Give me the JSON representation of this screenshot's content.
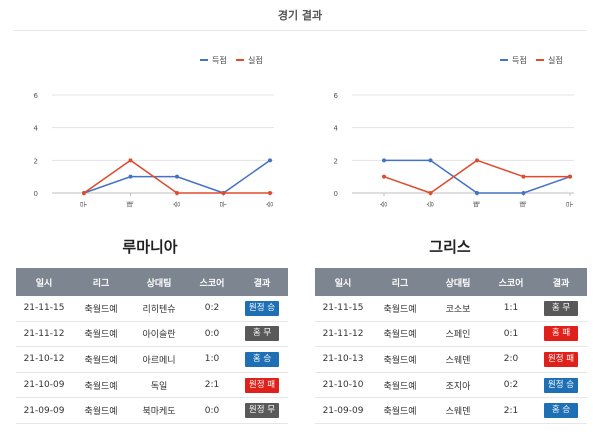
{
  "page": {
    "title": "경기 결과"
  },
  "colors": {
    "scored": "#4472c4",
    "conceded": "#e04b2e",
    "win": "#1f6fb5",
    "draw": "#595959",
    "loss": "#e0201b"
  },
  "chart_data": [
    {
      "type": "line",
      "title": "",
      "categories": [
        "무",
        "패",
        "승",
        "무",
        "승"
      ],
      "series": [
        {
          "name": "득점",
          "color": "#4472c4",
          "values": [
            0,
            1,
            1,
            0,
            2
          ]
        },
        {
          "name": "실점",
          "color": "#e04b2e",
          "values": [
            0,
            2,
            0,
            0,
            0
          ]
        }
      ],
      "yticks": [
        0,
        2,
        4,
        6
      ],
      "ylim": [
        0,
        6
      ],
      "legend": "top-right",
      "grid": true
    },
    {
      "type": "line",
      "title": "",
      "categories": [
        "승",
        "승",
        "패",
        "패",
        "무"
      ],
      "series": [
        {
          "name": "득점",
          "color": "#4472c4",
          "values": [
            2,
            2,
            0,
            0,
            1
          ]
        },
        {
          "name": "실점",
          "color": "#e04b2e",
          "values": [
            1,
            0,
            2,
            1,
            1
          ]
        }
      ],
      "yticks": [
        0,
        2,
        4,
        6
      ],
      "ylim": [
        0,
        6
      ],
      "legend": "top-right",
      "grid": true
    }
  ],
  "teams": [
    {
      "name": "루마니아",
      "headers": [
        "일시",
        "리그",
        "상대팀",
        "스코어",
        "결과"
      ],
      "rows": [
        {
          "date": "21-11-15",
          "league": "축월드예",
          "opponent": "리히텐슈",
          "score": "0:2",
          "result": "원정 승",
          "type": "win"
        },
        {
          "date": "21-11-12",
          "league": "축월드예",
          "opponent": "아이슬란",
          "score": "0:0",
          "result": "홈 무",
          "type": "draw"
        },
        {
          "date": "21-10-12",
          "league": "축월드예",
          "opponent": "아르메니",
          "score": "1:0",
          "result": "홈 승",
          "type": "win"
        },
        {
          "date": "21-10-09",
          "league": "축월드예",
          "opponent": "독일",
          "score": "2:1",
          "result": "원정 패",
          "type": "loss"
        },
        {
          "date": "21-09-09",
          "league": "축월드예",
          "opponent": "북마케도",
          "score": "0:0",
          "result": "원정 무",
          "type": "draw"
        }
      ]
    },
    {
      "name": "그리스",
      "headers": [
        "일시",
        "리그",
        "상대팀",
        "스코어",
        "결과"
      ],
      "rows": [
        {
          "date": "21-11-15",
          "league": "축월드예",
          "opponent": "코소보",
          "score": "1:1",
          "result": "홈 무",
          "type": "draw"
        },
        {
          "date": "21-11-12",
          "league": "축월드예",
          "opponent": "스페인",
          "score": "0:1",
          "result": "홈 패",
          "type": "loss"
        },
        {
          "date": "21-10-13",
          "league": "축월드예",
          "opponent": "스웨덴",
          "score": "2:0",
          "result": "원정 패",
          "type": "loss"
        },
        {
          "date": "21-10-10",
          "league": "축월드예",
          "opponent": "조지아",
          "score": "0:2",
          "result": "원정 승",
          "type": "win"
        },
        {
          "date": "21-09-09",
          "league": "축월드예",
          "opponent": "스웨덴",
          "score": "2:1",
          "result": "홈 승",
          "type": "win"
        }
      ]
    }
  ]
}
